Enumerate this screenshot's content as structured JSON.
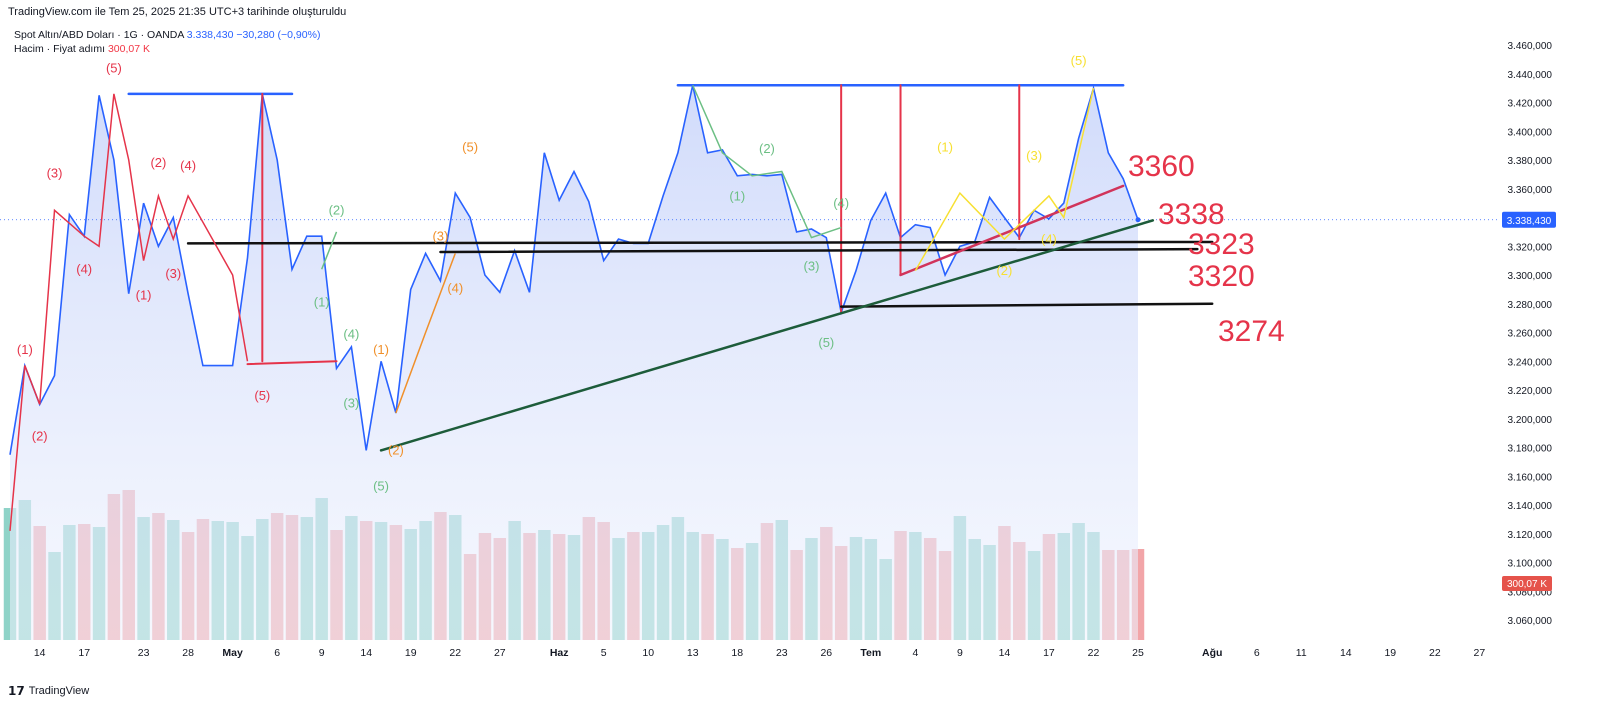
{
  "header": "TradingView.com ile Tem 25, 2025 21:35 UTC+3 tarihinde oluşturuldu",
  "legend": {
    "symbol": "Spot Altın/ABD Doları · 1G · OANDA",
    "price": "3.338,430",
    "change": "−30,280 (−0,90%)",
    "volume_label": "Hacim · Fiyat adımı",
    "volume_value": "300,07 K"
  },
  "footer": {
    "brand": "TradingView",
    "logo": "tradingview-logo-icon"
  },
  "colors": {
    "price_line": "#2962ff",
    "area_fill": "#d6def9",
    "volume_up": "#8fd3c8",
    "volume_down": "#f2a5a8",
    "red": "#e5344a",
    "green_trend": "#1d5c3a",
    "blue_level": "#2962ff",
    "orange": "#f0902a",
    "yellow": "#f7e032",
    "light_green": "#6cbf84",
    "pink": "#d1345b",
    "price_badge": "#2962ff",
    "volume_badge": "#e5534b"
  },
  "chart_data": {
    "type": "line",
    "title": "Spot Altın/ABD Doları",
    "x": [
      "2025-04-10",
      "2025-04-11",
      "2025-04-14",
      "2025-04-15",
      "2025-04-16",
      "2025-04-17",
      "2025-04-18",
      "2025-04-21",
      "2025-04-22",
      "2025-04-23",
      "2025-04-24",
      "2025-04-25",
      "2025-04-28",
      "2025-04-29",
      "2025-04-30",
      "2025-05-01",
      "2025-05-02",
      "2025-05-05",
      "2025-05-06",
      "2025-05-07",
      "2025-05-08",
      "2025-05-09",
      "2025-05-12",
      "2025-05-13",
      "2025-05-14",
      "2025-05-15",
      "2025-05-16",
      "2025-05-19",
      "2025-05-20",
      "2025-05-21",
      "2025-05-22",
      "2025-05-23",
      "2025-05-26",
      "2025-05-27",
      "2025-05-28",
      "2025-05-29",
      "2025-05-30",
      "2025-06-02",
      "2025-06-03",
      "2025-06-04",
      "2025-06-05",
      "2025-06-06",
      "2025-06-09",
      "2025-06-10",
      "2025-06-11",
      "2025-06-12",
      "2025-06-13",
      "2025-06-16",
      "2025-06-17",
      "2025-06-18",
      "2025-06-19",
      "2025-06-20",
      "2025-06-23",
      "2025-06-24",
      "2025-06-25",
      "2025-06-26",
      "2025-06-27",
      "2025-06-30",
      "2025-07-01",
      "2025-07-02",
      "2025-07-03",
      "2025-07-04",
      "2025-07-07",
      "2025-07-08",
      "2025-07-09",
      "2025-07-10",
      "2025-07-11",
      "2025-07-14",
      "2025-07-15",
      "2025-07-16",
      "2025-07-17",
      "2025-07-18",
      "2025-07-21",
      "2025-07-22",
      "2025-07-23",
      "2025-07-24",
      "2025-07-25"
    ],
    "series": [
      {
        "values": [
          3175,
          3237,
          3210,
          3230,
          3342,
          3327,
          3425,
          3380,
          3287,
          3350,
          3320,
          3340,
          3287,
          3237,
          3237,
          3237,
          3312,
          3426,
          3380,
          3304,
          3327,
          3327,
          3235,
          3250,
          3178,
          3240,
          3204,
          3290,
          3315,
          3296,
          3357,
          3340,
          3300,
          3288,
          3317,
          3288,
          3385,
          3352,
          3372,
          3351,
          3310,
          3325,
          3322,
          3322,
          3355,
          3385,
          3432,
          3385,
          3387,
          3369,
          3370,
          3369,
          3370,
          3330,
          3332,
          3326,
          3274,
          3303,
          3338,
          3357,
          3326,
          3335,
          3333,
          3300,
          3320,
          3323,
          3354,
          3340,
          3326,
          3345,
          3339,
          3350,
          3395,
          3430,
          3385,
          3367,
          3338.43
        ]
      },
      {
        "name": "Hacim",
        "values": [
          132,
          140,
          114,
          88,
          115,
          116,
          113,
          146,
          150,
          123,
          127,
          120,
          108,
          121,
          119,
          118,
          104,
          121,
          127,
          125,
          123,
          142,
          110,
          124,
          119,
          118,
          115,
          111,
          119,
          128,
          125,
          86,
          107,
          102,
          119,
          107,
          110,
          106,
          105,
          123,
          118,
          102,
          108,
          108,
          115,
          123,
          108,
          106,
          101,
          92,
          97,
          117,
          120,
          90,
          102,
          113,
          94,
          103,
          101,
          81,
          109,
          108,
          102,
          89,
          124,
          101,
          95,
          114,
          98,
          89,
          106,
          107,
          117,
          108,
          90,
          90,
          91
        ]
      }
    ],
    "y_ticks": [
      "3.460,000",
      "3.440,000",
      "3.420,000",
      "3.400,000",
      "3.380,000",
      "3.360,000",
      "3.340,000",
      "3.320,000",
      "3.300,000",
      "3.280,000",
      "3.260,000",
      "3.240,000",
      "3.220,000",
      "3.200,000",
      "3.180,000",
      "3.160,000",
      "3.140,000",
      "3.120,000",
      "3.100,000",
      "3.080,000",
      "3.060,000"
    ],
    "ylim": [
      3050,
      3470
    ],
    "x_ticks": [
      {
        "label": "14",
        "date": "2025-04-14"
      },
      {
        "label": "17",
        "date": "2025-04-17"
      },
      {
        "label": "23",
        "date": "2025-04-23"
      },
      {
        "label": "28",
        "date": "2025-04-28"
      },
      {
        "label": "May",
        "date": "2025-05-01",
        "bold": true
      },
      {
        "label": "6",
        "date": "2025-05-06"
      },
      {
        "label": "9",
        "date": "2025-05-09"
      },
      {
        "label": "14",
        "date": "2025-05-14"
      },
      {
        "label": "19",
        "date": "2025-05-19"
      },
      {
        "label": "22",
        "date": "2025-05-22"
      },
      {
        "label": "27",
        "date": "2025-05-27"
      },
      {
        "label": "Haz",
        "date": "2025-06-02",
        "bold": true
      },
      {
        "label": "5",
        "date": "2025-06-05"
      },
      {
        "label": "10",
        "date": "2025-06-10"
      },
      {
        "label": "13",
        "date": "2025-06-13"
      },
      {
        "label": "18",
        "date": "2025-06-18"
      },
      {
        "label": "23",
        "date": "2025-06-23"
      },
      {
        "label": "26",
        "date": "2025-06-26"
      },
      {
        "label": "Tem",
        "date": "2025-07-01",
        "bold": true
      },
      {
        "label": "4",
        "date": "2025-07-04"
      },
      {
        "label": "9",
        "date": "2025-07-09"
      },
      {
        "label": "14",
        "date": "2025-07-14"
      },
      {
        "label": "17",
        "date": "2025-07-17"
      },
      {
        "label": "22",
        "date": "2025-07-22"
      },
      {
        "label": "25",
        "date": "2025-07-25"
      },
      {
        "label": "Ağu",
        "date": "2025-08-01",
        "bold": true
      },
      {
        "label": "6",
        "date": "2025-08-06"
      },
      {
        "label": "11",
        "date": "2025-08-11"
      },
      {
        "label": "14",
        "date": "2025-08-14"
      },
      {
        "label": "19",
        "date": "2025-08-19"
      },
      {
        "label": "22",
        "date": "2025-08-22"
      },
      {
        "label": "27",
        "date": "2025-08-27"
      }
    ],
    "price_badge": "3.338,430",
    "volume_badge": "300,07 K",
    "levels": [
      "3360",
      "3338",
      "3323",
      "3320",
      "3274"
    ],
    "wave_labels": [
      "(1)",
      "(2)",
      "(3)",
      "(4)",
      "(5)"
    ]
  }
}
